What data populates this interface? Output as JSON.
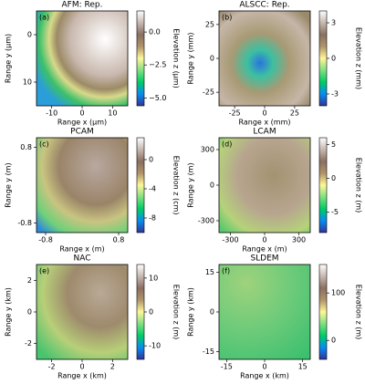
{
  "chart_data": [
    {
      "type": "heatmap",
      "panel": "(a)",
      "title": "AFM: Rep.",
      "xlabel": "Range x (μm)",
      "ylabel": "Range y (μm)",
      "colorbar_label": "Elevation z (μm)",
      "colormap": "terrain",
      "xlim": [
        -15,
        15
      ],
      "xticks": [
        -10,
        0,
        10
      ],
      "ylim": [
        15,
        -5
      ],
      "yticks": [
        0,
        10
      ],
      "clim": [
        -5.6,
        1.6
      ],
      "cticks": [
        {
          "value": 0,
          "label": "0.0"
        },
        {
          "value": -2.5,
          "label": "−2.5"
        },
        {
          "value": -5,
          "label": "−5.0"
        }
      ]
    },
    {
      "type": "heatmap",
      "panel": "(b)",
      "title": "ALSCC: Rep.",
      "xlabel": "Range x (mm)",
      "ylabel": "Range y (mm)",
      "colorbar_label": "Elevation z (mm)",
      "colormap": "terrain",
      "xlim": [
        -38,
        38
      ],
      "xticks": [
        -25,
        0,
        25
      ],
      "ylim": [
        -35,
        35
      ],
      "yticks": [
        -25,
        0,
        25
      ],
      "clim": [
        -4,
        4
      ],
      "cticks": [
        3,
        0,
        -3
      ]
    },
    {
      "type": "heatmap",
      "panel": "(c)",
      "title": "PCAM",
      "xlabel": "Range x (m)",
      "ylabel": "Range y (m)",
      "colorbar_label": "Elevation z (cm)",
      "colormap": "terrain",
      "xlim": [
        -1,
        1
      ],
      "xticks": [
        -0.8,
        0.8
      ],
      "ylim": [
        -1,
        1
      ],
      "yticks": [
        -0.8,
        0.8
      ],
      "clim": [
        -10,
        3
      ],
      "cticks": [
        0,
        -4,
        -8
      ]
    },
    {
      "type": "heatmap",
      "panel": "(d)",
      "title": "LCAM",
      "xlabel": "Range x (m)",
      "ylabel": "Range y (m)",
      "colorbar_label": "Elevation z (m)",
      "colormap": "terrain",
      "xlim": [
        -400,
        400
      ],
      "xticks": [
        -300,
        0,
        300
      ],
      "ylim": [
        -400,
        400
      ],
      "yticks": [
        -300,
        0,
        300
      ],
      "clim": [
        -8,
        6
      ],
      "cticks": [
        5,
        0,
        -5
      ]
    },
    {
      "type": "heatmap",
      "panel": "(e)",
      "title": "NAC",
      "xlabel": "Range x (km)",
      "ylabel": "Range y (km)",
      "colorbar_label": "Elevation z (m)",
      "colormap": "terrain",
      "xlim": [
        -3,
        3
      ],
      "xticks": [
        -2,
        0,
        2
      ],
      "ylim": [
        -3,
        3
      ],
      "yticks": [
        -2,
        0,
        2
      ],
      "clim": [
        -14,
        14
      ],
      "cticks": [
        10,
        0,
        -10
      ]
    },
    {
      "type": "heatmap",
      "panel": "(f)",
      "title": "SLDEM",
      "xlabel": "Range x (km)",
      "ylabel": "Range y (km)",
      "colorbar_label": "Elevation z (m)",
      "colormap": "terrain",
      "xlim": [
        -18,
        18
      ],
      "xticks": [
        -15,
        0,
        15
      ],
      "ylim": [
        -18,
        18
      ],
      "yticks": [
        -15,
        0,
        15
      ],
      "clim": [
        -40,
        160
      ],
      "cticks": [
        100,
        0
      ]
    }
  ]
}
